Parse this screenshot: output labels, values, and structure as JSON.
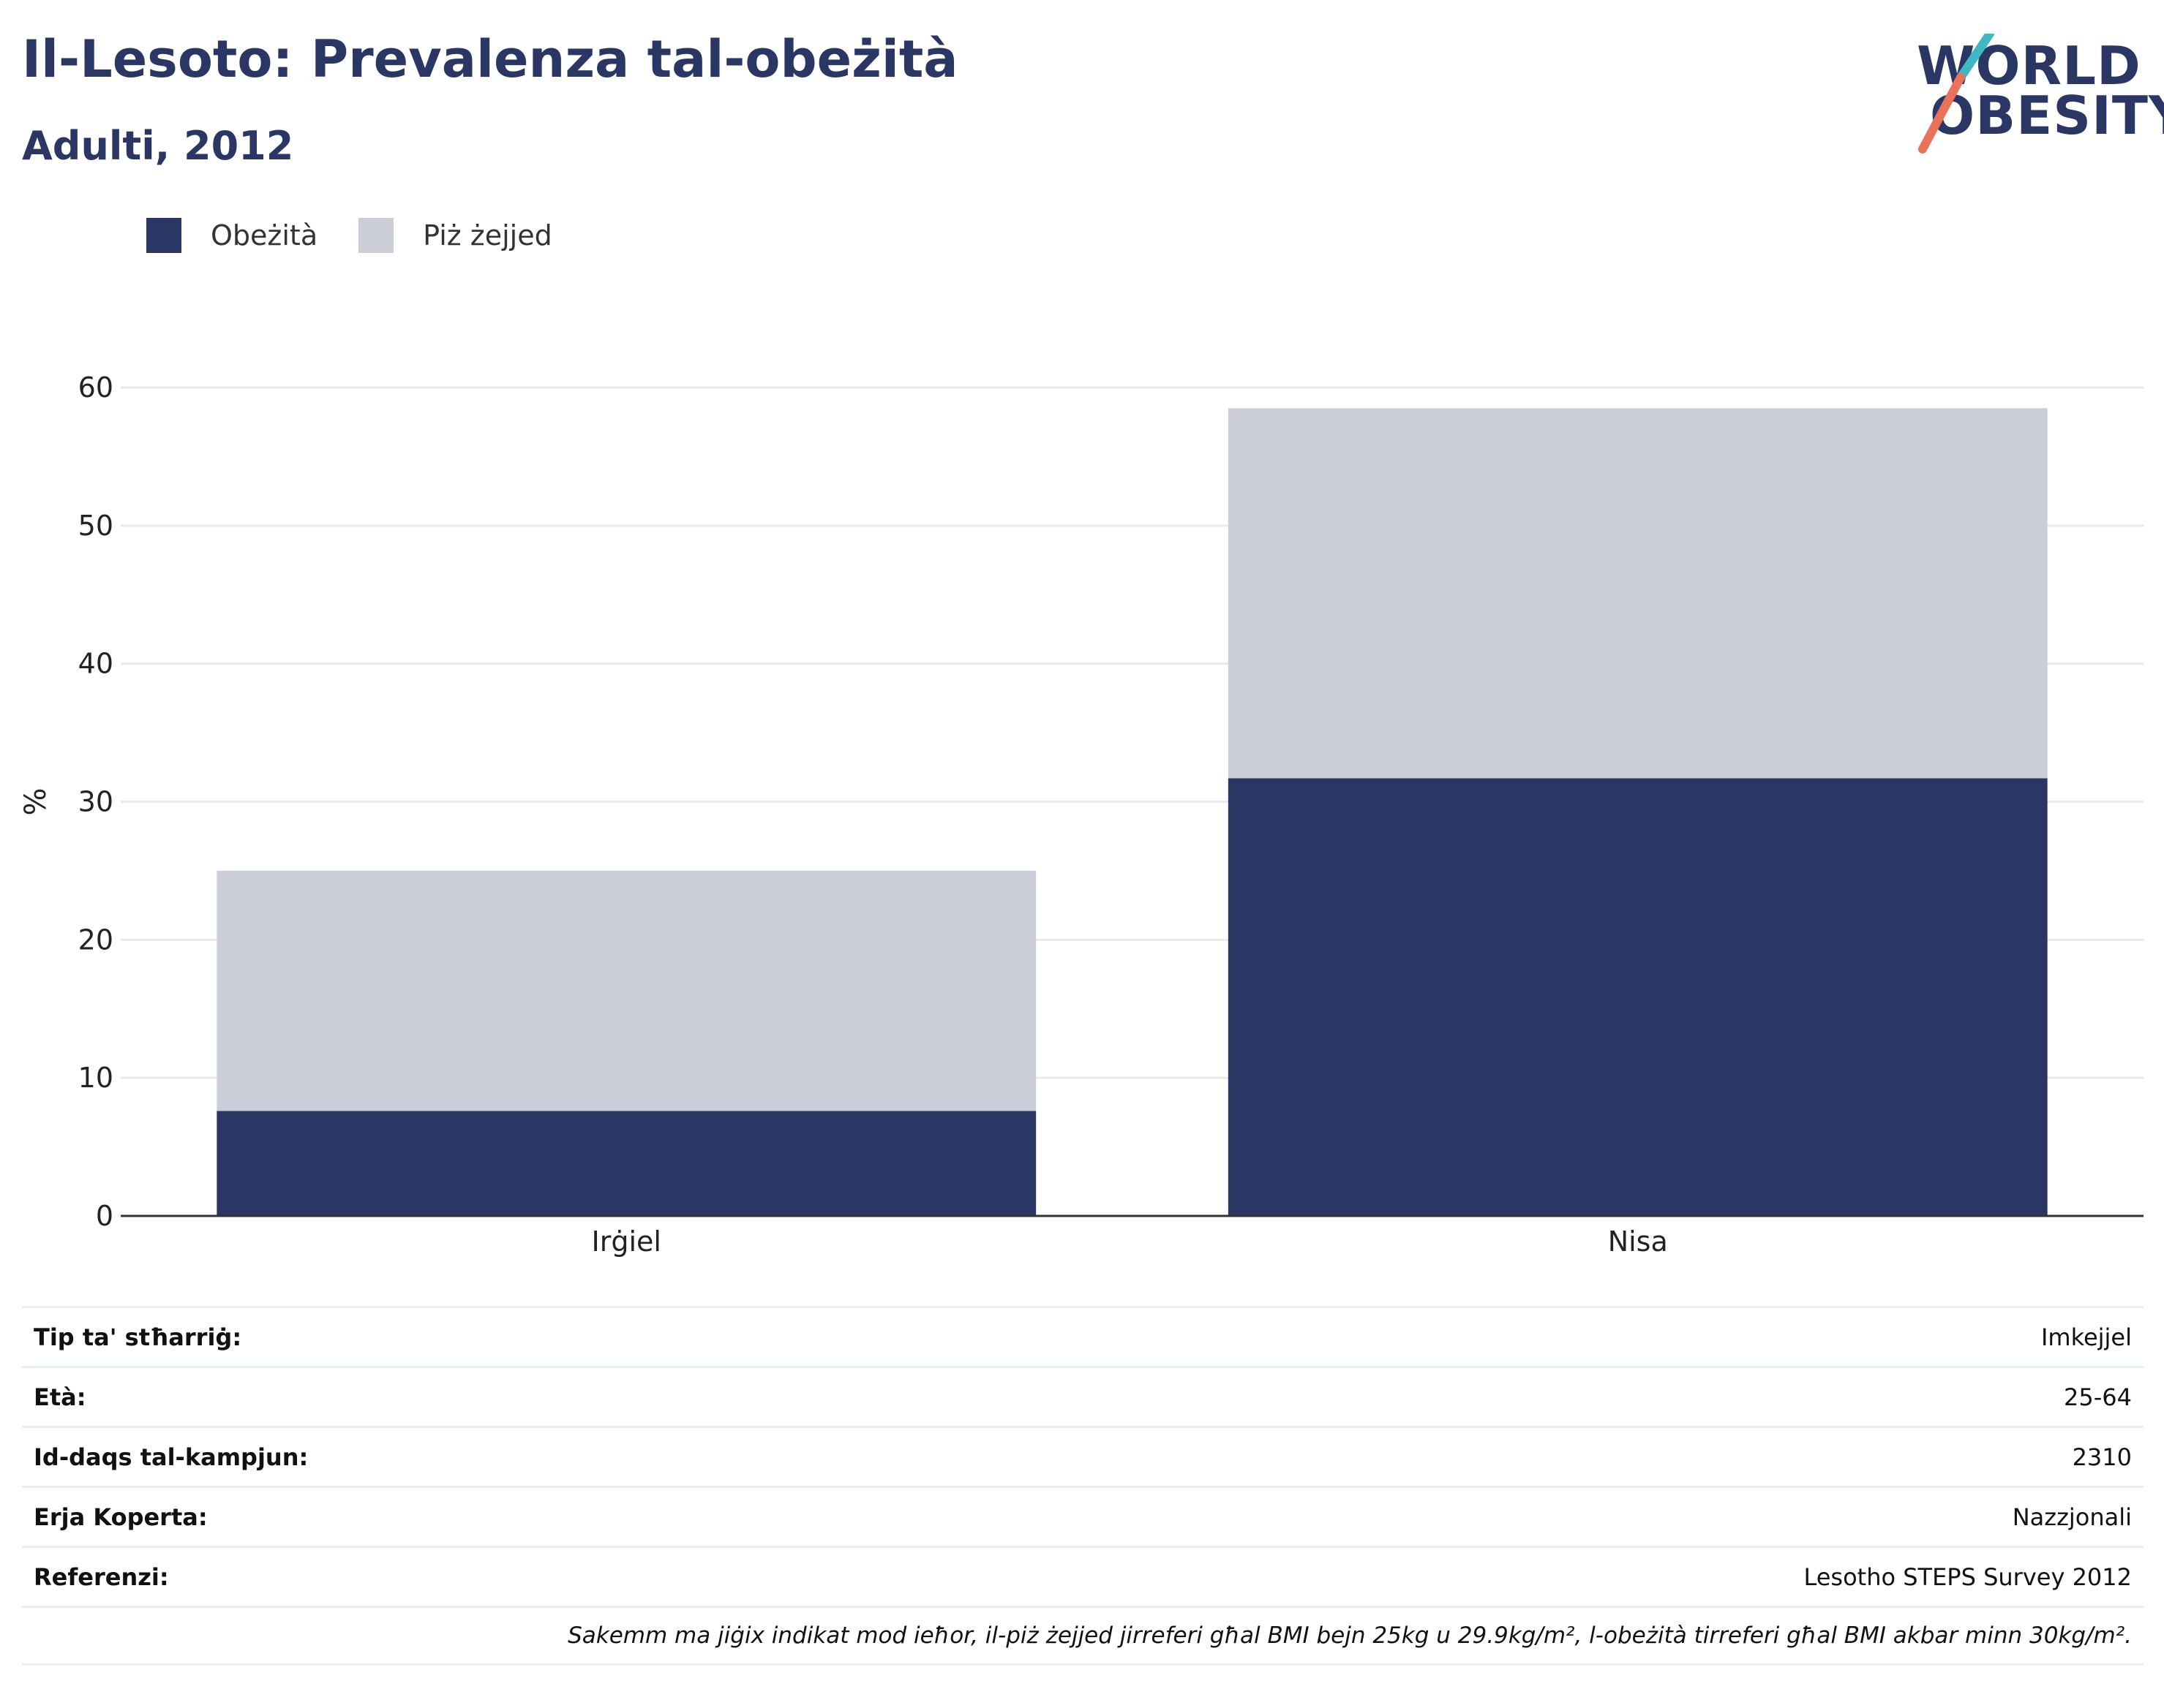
{
  "header": {
    "title": "Il-Lesoto: Prevalenza tal-obeżità",
    "subtitle": "Adulti, 2012"
  },
  "logo": {
    "line1": "WORLD",
    "line2": "OBESITY",
    "colors": {
      "text": "#2a3663",
      "slash_top": "#3fb8c4",
      "slash_bottom": "#e8735a"
    }
  },
  "legend": [
    {
      "label": "Obeżità",
      "color": "#2a3663"
    },
    {
      "label": "Piż żejjed",
      "color": "#cbcdd8"
    }
  ],
  "chart_data": {
    "type": "bar",
    "stacked": true,
    "categories": [
      "Irġiel",
      "Nisa"
    ],
    "series": [
      {
        "name": "Obeżità",
        "values": [
          7.6,
          31.7
        ],
        "color": "#2a3663"
      },
      {
        "name": "Piż żejjed",
        "values": [
          17.4,
          26.8
        ],
        "color": "#cbcdd8"
      }
    ],
    "ylabel": "%",
    "ylim": [
      0,
      60
    ],
    "yticks": [
      0,
      10,
      20,
      30,
      40,
      50,
      60
    ],
    "grid": true,
    "legend_position": "top-left"
  },
  "info_table": [
    {
      "label": "Tip ta' stħarriġ:",
      "value": "Imkejjel"
    },
    {
      "label": "Età:",
      "value": "25-64"
    },
    {
      "label": "Id-daqs tal-kampjun:",
      "value": "2310"
    },
    {
      "label": "Erja Koperta:",
      "value": "Nazzjonali"
    },
    {
      "label": "Referenzi:",
      "value": "Lesotho STEPS Survey 2012"
    }
  ],
  "footnote": "Sakemm ma jiġix indikat mod ieħor, il-piż żejjed jirreferi għal BMI bejn 25kg u 29.9kg/m², l-obeżità tirreferi għal BMI akbar minn 30kg/m²."
}
